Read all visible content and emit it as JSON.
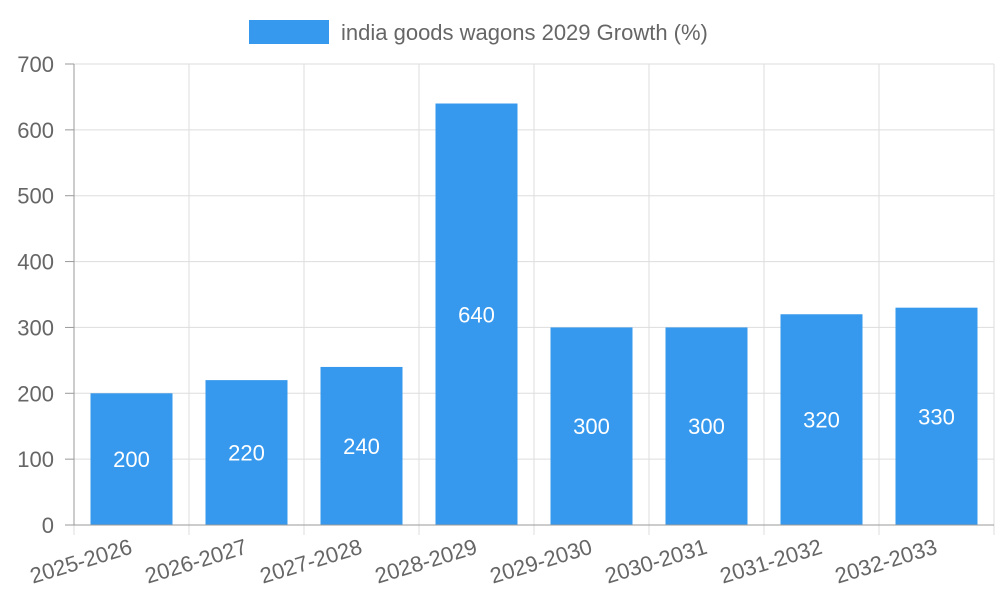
{
  "chart_data": {
    "type": "bar",
    "categories": [
      "2025-2026",
      "2026-2027",
      "2027-2028",
      "2028-2029",
      "2029-2030",
      "2030-2031",
      "2031-2032",
      "2032-2033"
    ],
    "series": [
      {
        "name": "india goods wagons 2029 Growth (%)",
        "values": [
          200,
          220,
          240,
          640,
          300,
          300,
          320,
          330
        ]
      }
    ],
    "ylim": [
      0,
      700
    ],
    "yticks": [
      0,
      100,
      200,
      300,
      400,
      500,
      600,
      700
    ],
    "grid": true,
    "legend_position": "top-center",
    "data_labels": true,
    "bar_color": "#3799ED"
  }
}
